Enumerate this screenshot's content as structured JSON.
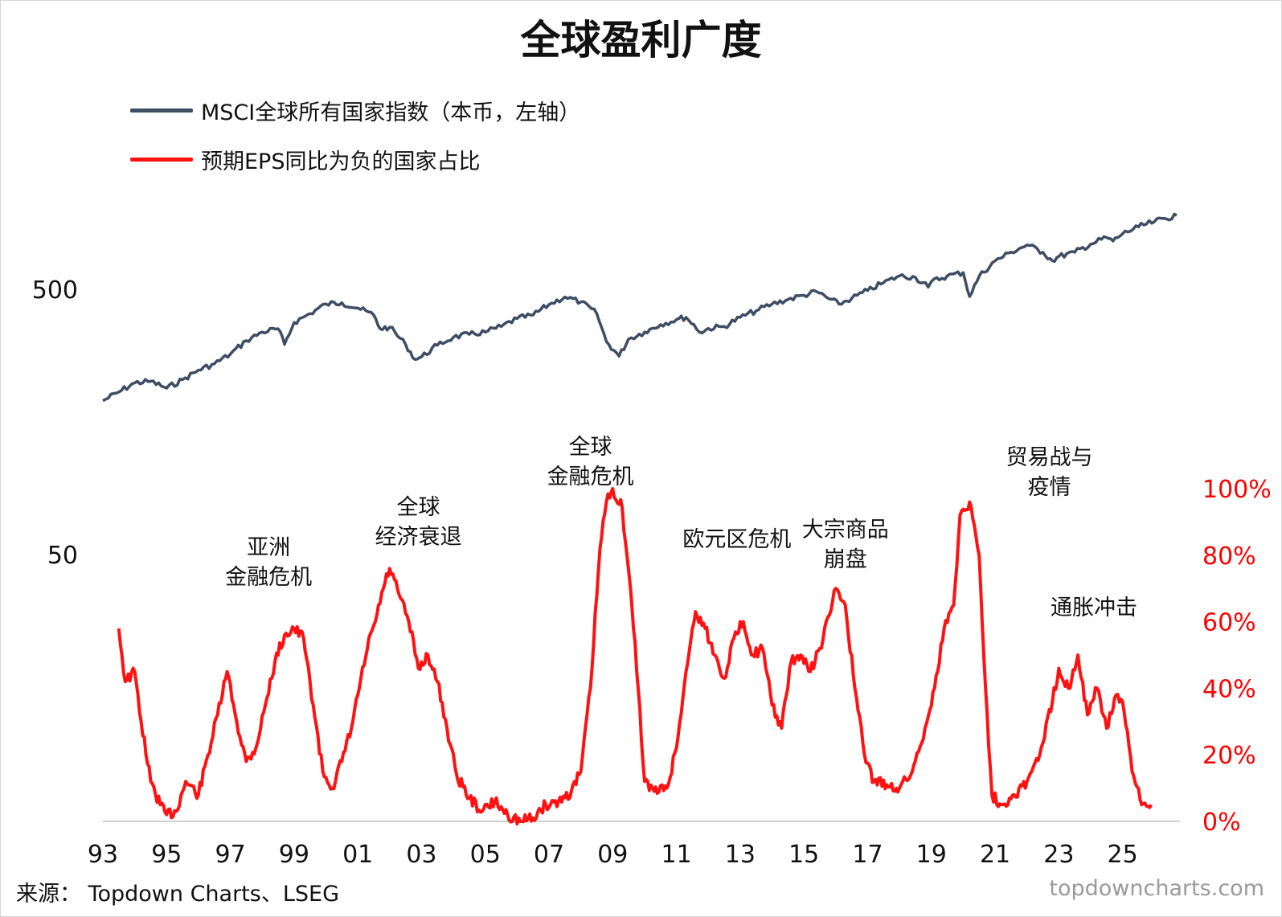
{
  "header": {
    "title": "全球盈利广度"
  },
  "legend": [
    {
      "label": "MSCI全球所有国家指数（本币，左轴）",
      "color": "#3d4d63"
    },
    {
      "label": "预期EPS同比为负的国家占比",
      "color": "#ff1111"
    }
  ],
  "footer": {
    "source": "来源：  Topdown Charts、LSEG",
    "watermark": "topdowncharts.com"
  },
  "colors": {
    "index_line": "#3d4d63",
    "eps_line": "#ff1111",
    "right_axis_text": "#ff0000"
  },
  "chart_data": {
    "type": "line",
    "title": "全球盈利广度",
    "x_tick_labels": [
      "93",
      "95",
      "97",
      "99",
      "01",
      "03",
      "05",
      "07",
      "09",
      "11",
      "13",
      "15",
      "17",
      "19",
      "21",
      "23",
      "25"
    ],
    "x_tick_years": [
      1993,
      1995,
      1997,
      1999,
      2001,
      2003,
      2005,
      2007,
      2009,
      2011,
      2013,
      2015,
      2017,
      2019,
      2021,
      2023,
      2025
    ],
    "x_range": [
      1993,
      2026.8
    ],
    "left_axis": {
      "scale": "log",
      "tick_labels": [
        "500",
        "50"
      ],
      "tick_values": [
        500,
        50
      ]
    },
    "right_axis": {
      "tick_labels": [
        "0%",
        "20%",
        "40%",
        "60%",
        "80%",
        "100%"
      ],
      "tick_values": [
        0,
        20,
        40,
        60,
        80,
        100
      ]
    },
    "annotations": [
      {
        "lines": [
          "亚洲",
          "金融危机"
        ],
        "year": 1998.2
      },
      {
        "lines": [
          "全球",
          "经济衰退"
        ],
        "year": 2002.9
      },
      {
        "lines": [
          "全球",
          "金融危机"
        ],
        "year": 2008.3
      },
      {
        "lines": [
          "欧元区危机"
        ],
        "year": 2012.9
      },
      {
        "lines": [
          "大宗商品",
          "崩盘"
        ],
        "year": 2016.3
      },
      {
        "lines": [
          "贸易战与",
          "疫情"
        ],
        "year": 2022.7
      },
      {
        "lines": [
          "通胀冲击"
        ],
        "year": 2024.1
      }
    ],
    "series": [
      {
        "name": "MSCI全球所有国家指数（本币，左轴）",
        "axis": "left",
        "points": [
          [
            1993.0,
            190
          ],
          [
            1993.5,
            205
          ],
          [
            1994.0,
            222
          ],
          [
            1994.5,
            225
          ],
          [
            1995.0,
            212
          ],
          [
            1995.5,
            228
          ],
          [
            1996.0,
            248
          ],
          [
            1996.5,
            262
          ],
          [
            1997.0,
            285
          ],
          [
            1997.5,
            320
          ],
          [
            1998.0,
            345
          ],
          [
            1998.5,
            355
          ],
          [
            1998.7,
            310
          ],
          [
            1999.0,
            375
          ],
          [
            1999.5,
            405
          ],
          [
            2000.0,
            440
          ],
          [
            2000.5,
            445
          ],
          [
            2001.0,
            425
          ],
          [
            2001.5,
            400
          ],
          [
            2001.7,
            355
          ],
          [
            2002.0,
            360
          ],
          [
            2002.5,
            310
          ],
          [
            2002.8,
            272
          ],
          [
            2003.0,
            278
          ],
          [
            2003.5,
            308
          ],
          [
            2004.0,
            330
          ],
          [
            2004.5,
            338
          ],
          [
            2005.0,
            345
          ],
          [
            2005.5,
            362
          ],
          [
            2006.0,
            388
          ],
          [
            2006.5,
            400
          ],
          [
            2007.0,
            438
          ],
          [
            2007.5,
            468
          ],
          [
            2008.0,
            448
          ],
          [
            2008.5,
            405
          ],
          [
            2008.8,
            318
          ],
          [
            2009.2,
            280
          ],
          [
            2009.5,
            325
          ],
          [
            2010.0,
            345
          ],
          [
            2010.5,
            368
          ],
          [
            2011.0,
            385
          ],
          [
            2011.3,
            392
          ],
          [
            2011.8,
            342
          ],
          [
            2012.0,
            356
          ],
          [
            2012.5,
            362
          ],
          [
            2013.0,
            392
          ],
          [
            2013.5,
            415
          ],
          [
            2014.0,
            440
          ],
          [
            2014.5,
            458
          ],
          [
            2015.0,
            475
          ],
          [
            2015.4,
            490
          ],
          [
            2015.8,
            460
          ],
          [
            2016.1,
            440
          ],
          [
            2016.5,
            462
          ],
          [
            2017.0,
            495
          ],
          [
            2017.5,
            530
          ],
          [
            2018.0,
            562
          ],
          [
            2018.5,
            555
          ],
          [
            2018.9,
            510
          ],
          [
            2019.0,
            535
          ],
          [
            2019.5,
            562
          ],
          [
            2020.0,
            578
          ],
          [
            2020.2,
            470
          ],
          [
            2020.5,
            560
          ],
          [
            2021.0,
            640
          ],
          [
            2021.5,
            690
          ],
          [
            2022.0,
            735
          ],
          [
            2022.5,
            690
          ],
          [
            2022.8,
            640
          ],
          [
            2023.0,
            665
          ],
          [
            2023.5,
            690
          ],
          [
            2024.0,
            740
          ],
          [
            2024.5,
            785
          ],
          [
            2024.7,
            760
          ],
          [
            2025.0,
            810
          ],
          [
            2025.5,
            860
          ],
          [
            2026.0,
            900
          ],
          [
            2026.7,
            950
          ]
        ]
      },
      {
        "name": "预期EPS同比为负的国家占比",
        "axis": "right",
        "points": [
          [
            1993.5,
            58
          ],
          [
            1993.7,
            42
          ],
          [
            1994.0,
            45
          ],
          [
            1994.2,
            30
          ],
          [
            1994.5,
            12
          ],
          [
            1994.8,
            5
          ],
          [
            1995.0,
            2
          ],
          [
            1995.3,
            3
          ],
          [
            1995.6,
            12
          ],
          [
            1996.0,
            8
          ],
          [
            1996.3,
            20
          ],
          [
            1996.6,
            32
          ],
          [
            1996.9,
            45
          ],
          [
            1997.2,
            30
          ],
          [
            1997.5,
            18
          ],
          [
            1997.8,
            22
          ],
          [
            1998.1,
            35
          ],
          [
            1998.4,
            48
          ],
          [
            1998.7,
            56
          ],
          [
            1999.0,
            58
          ],
          [
            1999.3,
            55
          ],
          [
            1999.6,
            35
          ],
          [
            1999.9,
            15
          ],
          [
            2000.2,
            10
          ],
          [
            2000.5,
            18
          ],
          [
            2000.8,
            28
          ],
          [
            2001.0,
            38
          ],
          [
            2001.3,
            52
          ],
          [
            2001.6,
            62
          ],
          [
            2001.8,
            70
          ],
          [
            2002.0,
            76
          ],
          [
            2002.3,
            68
          ],
          [
            2002.6,
            60
          ],
          [
            2002.9,
            46
          ],
          [
            2003.2,
            50
          ],
          [
            2003.5,
            42
          ],
          [
            2003.8,
            28
          ],
          [
            2004.1,
            14
          ],
          [
            2004.5,
            7
          ],
          [
            2004.9,
            3
          ],
          [
            2005.3,
            6
          ],
          [
            2005.7,
            2
          ],
          [
            2006.1,
            0
          ],
          [
            2006.5,
            1
          ],
          [
            2006.9,
            5
          ],
          [
            2007.3,
            6
          ],
          [
            2007.7,
            9
          ],
          [
            2008.0,
            15
          ],
          [
            2008.3,
            40
          ],
          [
            2008.6,
            82
          ],
          [
            2008.8,
            96
          ],
          [
            2009.0,
            100
          ],
          [
            2009.3,
            94
          ],
          [
            2009.6,
            65
          ],
          [
            2009.8,
            40
          ],
          [
            2010.0,
            12
          ],
          [
            2010.3,
            9
          ],
          [
            2010.7,
            10
          ],
          [
            2011.0,
            22
          ],
          [
            2011.3,
            45
          ],
          [
            2011.6,
            63
          ],
          [
            2011.9,
            58
          ],
          [
            2012.2,
            50
          ],
          [
            2012.5,
            43
          ],
          [
            2012.8,
            55
          ],
          [
            2013.1,
            60
          ],
          [
            2013.4,
            50
          ],
          [
            2013.7,
            52
          ],
          [
            2014.0,
            35
          ],
          [
            2014.3,
            28
          ],
          [
            2014.6,
            48
          ],
          [
            2014.9,
            50
          ],
          [
            2015.2,
            45
          ],
          [
            2015.5,
            52
          ],
          [
            2015.8,
            62
          ],
          [
            2016.0,
            70
          ],
          [
            2016.3,
            65
          ],
          [
            2016.6,
            40
          ],
          [
            2016.9,
            20
          ],
          [
            2017.2,
            12
          ],
          [
            2017.6,
            11
          ],
          [
            2018.0,
            10
          ],
          [
            2018.4,
            15
          ],
          [
            2018.8,
            28
          ],
          [
            2019.1,
            40
          ],
          [
            2019.4,
            58
          ],
          [
            2019.7,
            65
          ],
          [
            2019.9,
            92
          ],
          [
            2020.2,
            96
          ],
          [
            2020.5,
            80
          ],
          [
            2020.7,
            40
          ],
          [
            2020.9,
            8
          ],
          [
            2021.2,
            5
          ],
          [
            2021.6,
            8
          ],
          [
            2022.0,
            12
          ],
          [
            2022.4,
            20
          ],
          [
            2022.8,
            36
          ],
          [
            2023.0,
            46
          ],
          [
            2023.3,
            40
          ],
          [
            2023.6,
            50
          ],
          [
            2023.9,
            32
          ],
          [
            2024.2,
            40
          ],
          [
            2024.5,
            28
          ],
          [
            2024.8,
            38
          ],
          [
            2025.0,
            36
          ],
          [
            2025.3,
            15
          ],
          [
            2025.6,
            5
          ],
          [
            2025.9,
            5
          ]
        ]
      }
    ]
  }
}
